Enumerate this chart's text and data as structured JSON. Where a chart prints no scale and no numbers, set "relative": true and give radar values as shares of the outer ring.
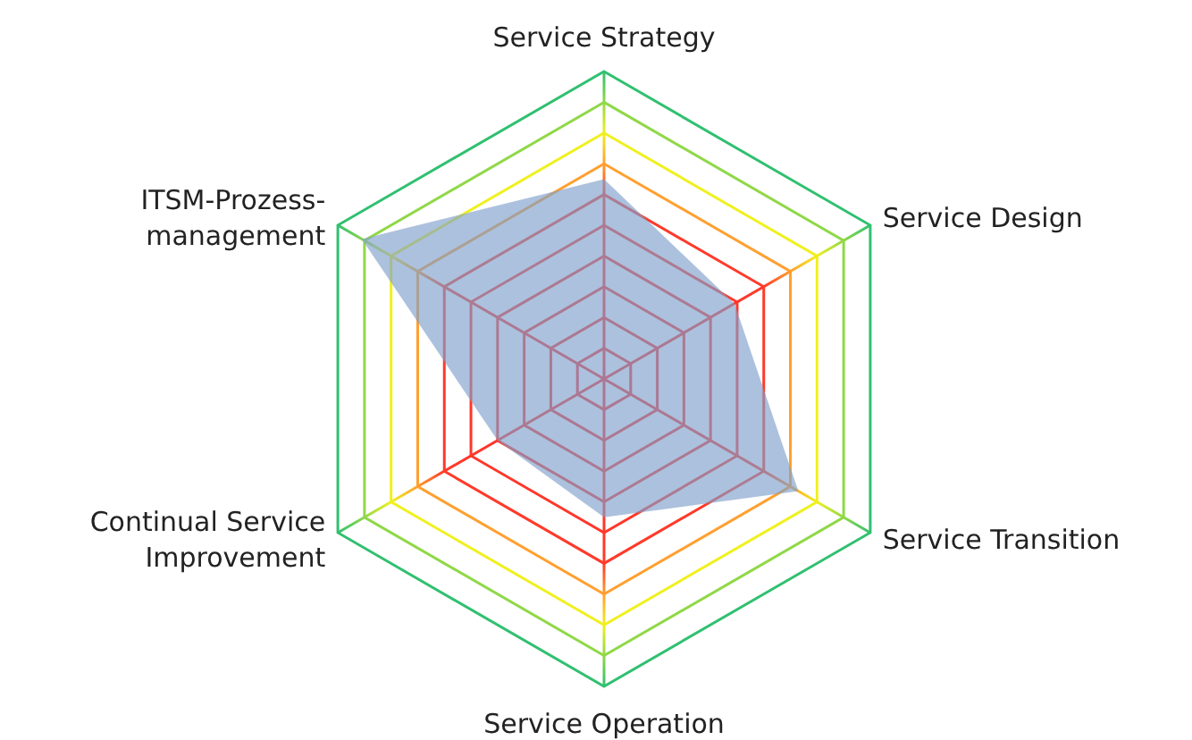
{
  "chart_data": {
    "type": "radar",
    "relative": true,
    "grid": true,
    "categories": [
      "Service Strategy",
      "Service Design",
      "Service Transition",
      "Service Operation",
      "Continual Service\nImprovement",
      "ITSM-Prozess-\nmanagement"
    ],
    "series": [
      {
        "color": "#7f9fcb",
        "values": [
          0.65,
          0.49,
          0.73,
          0.45,
          0.4,
          0.91
        ]
      }
    ]
  }
}
